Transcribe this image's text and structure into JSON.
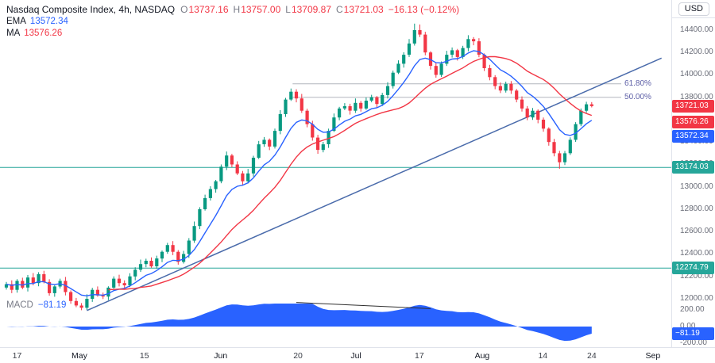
{
  "header": {
    "title": "Nasdaq Composite Index, 4h, NASDAQ",
    "ohlc": {
      "o_label": "O",
      "open": "13737.16",
      "h_label": "H",
      "high": "13757.00",
      "l_label": "L",
      "low": "13709.87",
      "c_label": "C",
      "close": "13721.03",
      "change": "−16.13 (−0.12%)"
    },
    "ema_label": "EMA",
    "ema_value": "13572.34",
    "ma_label": "MA",
    "ma_value": "13576.26"
  },
  "currency_button": "USD",
  "macd_legend": {
    "label": "MACD",
    "value": "−81.19"
  },
  "colors": {
    "up": "#089981",
    "down": "#F23645",
    "ema": "#2962FF",
    "ma": "#F23645",
    "level": "#26A69A",
    "macd_fill": "#2962FF",
    "fib_line": "#B2B5BE",
    "fib_label": "#5C5EA6",
    "trendline": "#4A6BAB",
    "divergence": "#2E2E2E",
    "text": "#131722",
    "muted": "#787B86",
    "axis_border": "#E0E3EB"
  },
  "axis_tags": {
    "price": [
      {
        "text": "13721.03",
        "price": 13721.03,
        "color": "#F23645"
      },
      {
        "text": "13576.26",
        "price": 13576.26,
        "color": "#F23645"
      },
      {
        "text": "13572.34",
        "price": 13572.34,
        "color": "#2962FF"
      },
      {
        "text": "13174.03",
        "price": 13174.03,
        "color": "#26A69A"
      },
      {
        "text": "12274.79",
        "price": 12274.79,
        "color": "#26A69A"
      }
    ],
    "macd": {
      "text": "−81.19",
      "value": -81.19,
      "color": "#2962FF"
    }
  },
  "chart_data": {
    "type": "candlestick",
    "title": "Nasdaq Composite Index",
    "interval": "4h",
    "exchange": "NASDAQ",
    "currency": "USD",
    "last_bar": {
      "open": 13737.16,
      "high": 13757.0,
      "low": 13709.87,
      "close": 13721.03,
      "change": -16.13,
      "change_pct": -0.12
    },
    "indicators": {
      "ema": {
        "period": 9,
        "value": 13572.34
      },
      "sma": {
        "period": 20,
        "value": 13576.26
      },
      "macd": {
        "fast": 12,
        "slow": 26,
        "value": -81.19
      }
    },
    "ylim": [
      11900,
      14470
    ],
    "macd_ylim": [
      -260,
      260
    ],
    "price_axis_labels": [
      {
        "text": "14400.00",
        "price": 14400
      },
      {
        "text": "14200.00",
        "price": 14200
      },
      {
        "text": "14000.00",
        "price": 14000
      },
      {
        "text": "13800.00",
        "price": 13800
      },
      {
        "text": "13600.00",
        "price": 13600
      },
      {
        "text": "13400.00",
        "price": 13400
      },
      {
        "text": "13200.00",
        "price": 13200
      },
      {
        "text": "13000.00",
        "price": 13000
      },
      {
        "text": "12800.00",
        "price": 12800
      },
      {
        "text": "12600.00",
        "price": 12600
      },
      {
        "text": "12400.00",
        "price": 12400
      },
      {
        "text": "12200.00",
        "price": 12200
      },
      {
        "text": "12000.00",
        "price": 12000
      }
    ],
    "macd_axis_labels": [
      {
        "text": "200.00",
        "value": 200
      },
      {
        "text": "0.00",
        "value": 0
      },
      {
        "text": "-200.00",
        "value": -200
      }
    ],
    "time_axis_labels": [
      {
        "text": "17",
        "index": 2,
        "month": false
      },
      {
        "text": "May",
        "index": 13.6,
        "month": true
      },
      {
        "text": "15",
        "index": 25.7,
        "month": false
      },
      {
        "text": "Jun",
        "index": 39.9,
        "month": true
      },
      {
        "text": "20",
        "index": 54.3,
        "month": false
      },
      {
        "text": "Jul",
        "index": 65.1,
        "month": true
      },
      {
        "text": "17",
        "index": 76.9,
        "month": false
      },
      {
        "text": "Aug",
        "index": 88.6,
        "month": true
      },
      {
        "text": "14",
        "index": 99.9,
        "month": false
      },
      {
        "text": "24",
        "index": 109,
        "month": false
      },
      {
        "text": "Sep",
        "index": 120.4,
        "month": true
      }
    ],
    "horizontal_levels": [
      {
        "price": 13174.03
      },
      {
        "price": 12274.79
      }
    ],
    "fib": {
      "from_index": 53.3,
      "to_index": 114.5,
      "levels": [
        {
          "label": "61.80%",
          "price": 13920
        },
        {
          "label": "50.00%",
          "price": 13800
        }
      ]
    },
    "trendline": {
      "from": {
        "index": 15,
        "price": 11895
      },
      "to": {
        "index": 122,
        "price": 14150
      }
    },
    "macd_divergence_line": {
      "from": {
        "index": 54,
        "value": 290
      },
      "to": {
        "index": 79,
        "value": 215
      }
    },
    "candles": [
      [
        12100,
        12150,
        12082,
        12130
      ],
      [
        12130,
        12165,
        12050,
        12080
      ],
      [
        12080,
        12175,
        12055,
        12160
      ],
      [
        12160,
        12188,
        12085,
        12100
      ],
      [
        12100,
        12212,
        12065,
        12190
      ],
      [
        12190,
        12230,
        12120,
        12140
      ],
      [
        12140,
        12238,
        12112,
        12220
      ],
      [
        12220,
        12250,
        12138,
        12150
      ],
      [
        12150,
        12175,
        12028,
        12050
      ],
      [
        12050,
        12122,
        12018,
        12110
      ],
      [
        12110,
        12180,
        12092,
        12160
      ],
      [
        12160,
        12195,
        12030,
        12060
      ],
      [
        12060,
        12075,
        11955,
        11980
      ],
      [
        11980,
        12008,
        11925,
        11940
      ],
      [
        11940,
        11962,
        11898,
        11920
      ],
      [
        11920,
        12040,
        11900,
        12000
      ],
      [
        12000,
        12098,
        11972,
        12080
      ],
      [
        12080,
        12110,
        12018,
        12030
      ],
      [
        12030,
        12055,
        11998,
        12020
      ],
      [
        12020,
        12112,
        11988,
        12100
      ],
      [
        12100,
        12200,
        12082,
        12180
      ],
      [
        12180,
        12215,
        12110,
        12140
      ],
      [
        12140,
        12165,
        12095,
        12120
      ],
      [
        12120,
        12228,
        12105,
        12200
      ],
      [
        12200,
        12282,
        12165,
        12260
      ],
      [
        12260,
        12350,
        12240,
        12310
      ],
      [
        12310,
        12358,
        12282,
        12340
      ],
      [
        12340,
        12370,
        12278,
        12290
      ],
      [
        12290,
        12385,
        12268,
        12360
      ],
      [
        12360,
        12432,
        12328,
        12420
      ],
      [
        12420,
        12500,
        12402,
        12480
      ],
      [
        12480,
        12515,
        12390,
        12420
      ],
      [
        12420,
        12435,
        12305,
        12330
      ],
      [
        12330,
        12428,
        12315,
        12400
      ],
      [
        12400,
        12542,
        12365,
        12520
      ],
      [
        12520,
        12690,
        12500,
        12650
      ],
      [
        12650,
        12818,
        12622,
        12800
      ],
      [
        12800,
        12930,
        12788,
        12900
      ],
      [
        12900,
        13005,
        12878,
        12980
      ],
      [
        12980,
        13062,
        12948,
        13050
      ],
      [
        13050,
        13200,
        13032,
        13180
      ],
      [
        13180,
        13315,
        13150,
        13280
      ],
      [
        13280,
        13295,
        13175,
        13200
      ],
      [
        13200,
        13228,
        13105,
        13120
      ],
      [
        13120,
        13142,
        13015,
        13050
      ],
      [
        13050,
        13160,
        13030,
        13120
      ],
      [
        13120,
        13278,
        13092,
        13260
      ],
      [
        13260,
        13410,
        13248,
        13380
      ],
      [
        13380,
        13445,
        13358,
        13420
      ],
      [
        13420,
        13432,
        13328,
        13360
      ],
      [
        13360,
        13520,
        13342,
        13500
      ],
      [
        13500,
        13685,
        13470,
        13650
      ],
      [
        13650,
        13795,
        13625,
        13780
      ],
      [
        13780,
        13878,
        13768,
        13850
      ],
      [
        13850,
        13872,
        13755,
        13790
      ],
      [
        13790,
        13830,
        13660,
        13680
      ],
      [
        13680,
        13698,
        13532,
        13560
      ],
      [
        13560,
        13590,
        13412,
        13440
      ],
      [
        13440,
        13465,
        13295,
        13330
      ],
      [
        13330,
        13402,
        13308,
        13380
      ],
      [
        13380,
        13520,
        13348,
        13500
      ],
      [
        13500,
        13655,
        13490,
        13620
      ],
      [
        13620,
        13715,
        13595,
        13700
      ],
      [
        13700,
        13748,
        13685,
        13720
      ],
      [
        13720,
        13742,
        13645,
        13680
      ],
      [
        13680,
        13790,
        13660,
        13750
      ],
      [
        13750,
        13768,
        13672,
        13700
      ],
      [
        13700,
        13798,
        13688,
        13770
      ],
      [
        13770,
        13822,
        13755,
        13800
      ],
      [
        13800,
        13812,
        13708,
        13740
      ],
      [
        13740,
        13840,
        13722,
        13820
      ],
      [
        13820,
        13935,
        13790,
        13900
      ],
      [
        13900,
        14038,
        13878,
        14020
      ],
      [
        14020,
        14130,
        14008,
        14100
      ],
      [
        14100,
        14202,
        14065,
        14180
      ],
      [
        14180,
        14320,
        14160,
        14280
      ],
      [
        14280,
        14458,
        14262,
        14400
      ],
      [
        14400,
        14450,
        14338,
        14360
      ],
      [
        14360,
        14385,
        14175,
        14200
      ],
      [
        14200,
        14212,
        14048,
        14080
      ],
      [
        14080,
        14110,
        13975,
        14000
      ],
      [
        14000,
        14120,
        13982,
        14100
      ],
      [
        14100,
        14215,
        14080,
        14180
      ],
      [
        14180,
        14245,
        14155,
        14220
      ],
      [
        14220,
        14232,
        14128,
        14160
      ],
      [
        14160,
        14260,
        14142,
        14240
      ],
      [
        14240,
        14355,
        14210,
        14320
      ],
      [
        14320,
        14338,
        14265,
        14300
      ],
      [
        14300,
        14328,
        14158,
        14180
      ],
      [
        14180,
        14192,
        14035,
        14060
      ],
      [
        14060,
        14090,
        13952,
        13980
      ],
      [
        13980,
        13998,
        13872,
        13900
      ],
      [
        13900,
        13932,
        13838,
        13860
      ],
      [
        13860,
        13940,
        13842,
        13920
      ],
      [
        13920,
        13945,
        13830,
        13860
      ],
      [
        13860,
        13875,
        13755,
        13780
      ],
      [
        13780,
        13808,
        13672,
        13700
      ],
      [
        13700,
        13722,
        13595,
        13620
      ],
      [
        13620,
        13705,
        13598,
        13680
      ],
      [
        13680,
        13692,
        13568,
        13600
      ],
      [
        13600,
        13620,
        13492,
        13520
      ],
      [
        13520,
        13532,
        13368,
        13400
      ],
      [
        13400,
        13428,
        13272,
        13300
      ],
      [
        13300,
        13322,
        13162,
        13220
      ],
      [
        13220,
        13320,
        13195,
        13300
      ],
      [
        13300,
        13442,
        13285,
        13420
      ],
      [
        13420,
        13578,
        13402,
        13560
      ],
      [
        13560,
        13700,
        13542,
        13680
      ],
      [
        13680,
        13760,
        13662,
        13737
      ],
      [
        13737.16,
        13757.0,
        13709.87,
        13721.03
      ]
    ]
  }
}
